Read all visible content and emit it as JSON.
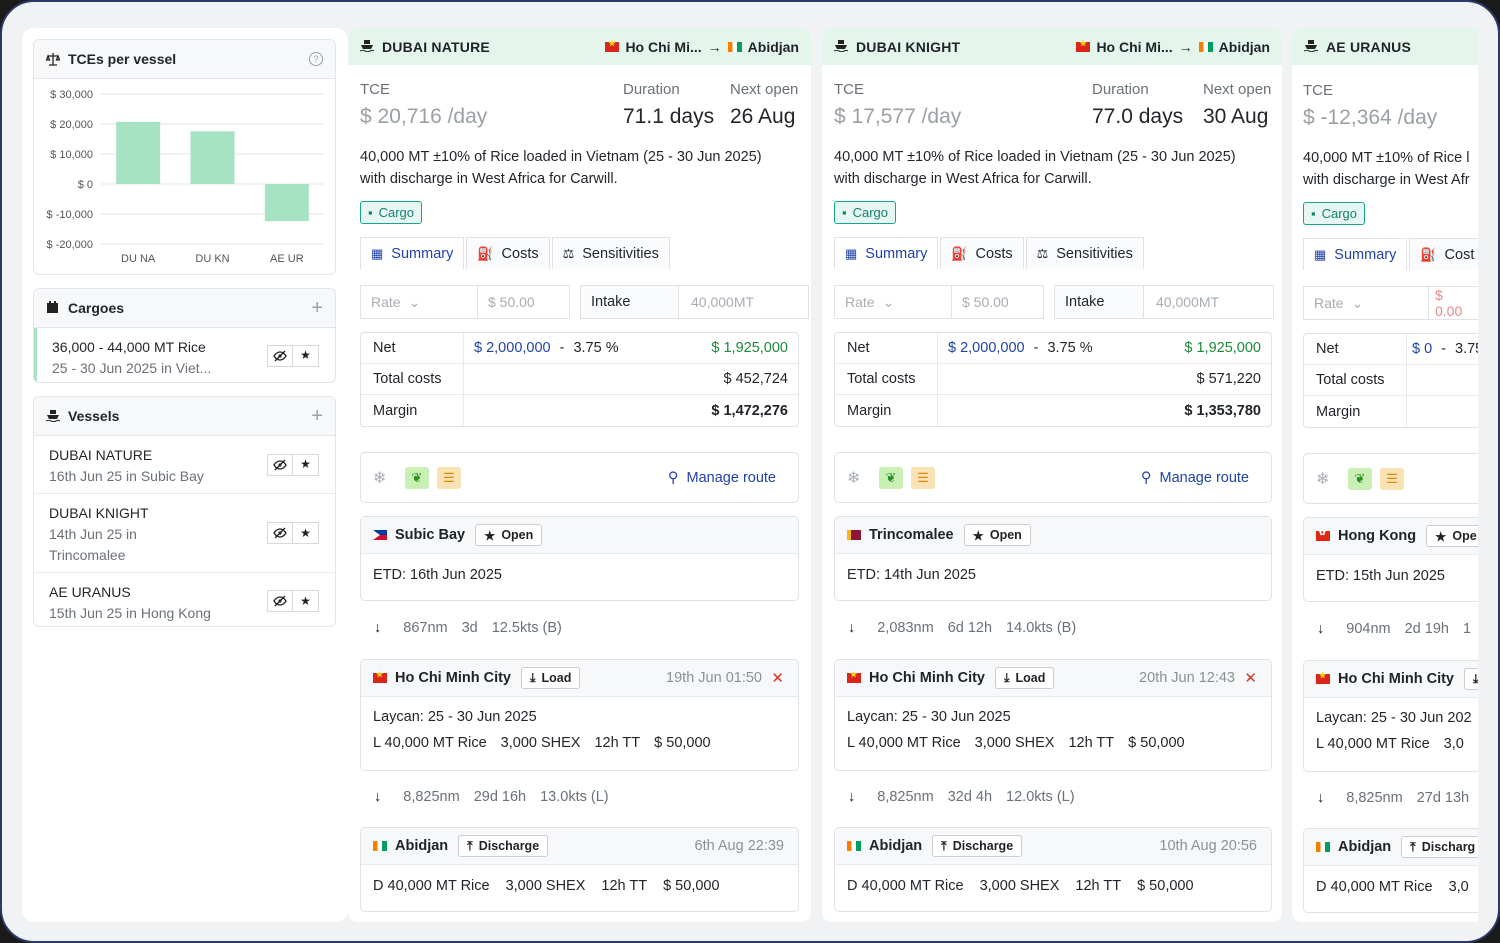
{
  "sidebar": {
    "tce_panel": {
      "title": "TCEs per vessel",
      "help": "?"
    },
    "cargoes": {
      "title": "Cargoes",
      "add": "+",
      "items": [
        {
          "line1": "36,000 - 44,000 MT Rice",
          "line2": "25 - 30 Jun 2025 in Viet..."
        }
      ]
    },
    "vessels": {
      "title": "Vessels",
      "add": "+",
      "items": [
        {
          "name": "DUBAI NATURE",
          "sub": "16th Jun 25 in Subic Bay"
        },
        {
          "name": "DUBAI KNIGHT",
          "sub": "14th Jun 25 in",
          "sub2": "Trincomalee"
        },
        {
          "name": "AE URANUS",
          "sub": "15th Jun 25 in Hong Kong"
        }
      ]
    }
  },
  "chart_data": {
    "type": "bar",
    "title": "TCEs per vessel",
    "categories": [
      "DU NA",
      "DU KN",
      "AE UR"
    ],
    "values": [
      20716,
      17577,
      -12364
    ],
    "yticks": [
      "$ 30,000",
      "$ 20,000",
      "$ 10,000",
      "$ 0",
      "$ -10,000",
      "$ -20,000"
    ],
    "ylim": [
      -20000,
      30000
    ],
    "color": "#a6e3c2",
    "grid": true
  },
  "cards": [
    {
      "vessel": "DUBAI NATURE",
      "from": "Ho Chi Mi...",
      "to": "Abidjan",
      "tce_label": "TCE",
      "tce": "$ 20,716",
      "tce_unit": "/day",
      "duration_label": "Duration",
      "duration": "71.1 days",
      "next_label": "Next open",
      "next": "26 Aug",
      "desc1": "40,000 MT ±10% of Rice loaded in Vietnam (25 - 30 Jun 2025)",
      "desc2": "with discharge in West Africa for Carwill.",
      "tag": "Cargo",
      "tabs": [
        "Summary",
        "Costs",
        "Sensitivities"
      ],
      "rate_label": "Rate",
      "rate_value": "$ 50.00",
      "intake_label": "Intake",
      "intake_value": "40,000MT",
      "net_label": "Net",
      "net_gross": "$ 2,000,000",
      "net_sep": "-",
      "net_pct": "3.75 %",
      "net_value": "$ 1,925,000",
      "costs_label": "Total costs",
      "costs_value": "$ 452,724",
      "margin_label": "Margin",
      "margin_value": "$ 1,472,276",
      "manage": "Manage route",
      "port1": {
        "name": "Subic Bay",
        "pill": "Open",
        "body": "ETD: 16th Jun 2025"
      },
      "leg1": [
        "867nm",
        "3d",
        "12.5kts (B)"
      ],
      "port2": {
        "name": "Ho Chi Minh City",
        "pill": "Load",
        "time": "19th Jun 01:50",
        "line1": "Laycan: 25 - 30 Jun 2025",
        "line2": [
          "L 40,000 MT Rice",
          "3,000 SHEX",
          "12h TT",
          "$ 50,000"
        ]
      },
      "leg2": [
        "8,825nm",
        "29d 16h",
        "13.0kts (L)"
      ],
      "port3": {
        "name": "Abidjan",
        "pill": "Discharge",
        "time": "6th Aug 22:39",
        "line2": [
          "D 40,000 MT Rice",
          "3,000 SHEX",
          "12h TT",
          "$ 50,000"
        ]
      }
    },
    {
      "vessel": "DUBAI KNIGHT",
      "from": "Ho Chi Mi...",
      "to": "Abidjan",
      "tce_label": "TCE",
      "tce": "$ 17,577",
      "tce_unit": "/day",
      "duration_label": "Duration",
      "duration": "77.0 days",
      "next_label": "Next open",
      "next": "30 Aug",
      "desc1": "40,000 MT ±10% of Rice loaded in Vietnam (25 - 30 Jun 2025)",
      "desc2": "with discharge in West Africa for Carwill.",
      "tag": "Cargo",
      "tabs": [
        "Summary",
        "Costs",
        "Sensitivities"
      ],
      "rate_label": "Rate",
      "rate_value": "$ 50.00",
      "intake_label": "Intake",
      "intake_value": "40,000MT",
      "net_label": "Net",
      "net_gross": "$ 2,000,000",
      "net_sep": "-",
      "net_pct": "3.75 %",
      "net_value": "$ 1,925,000",
      "costs_label": "Total costs",
      "costs_value": "$ 571,220",
      "margin_label": "Margin",
      "margin_value": "$ 1,353,780",
      "manage": "Manage route",
      "port1": {
        "name": "Trincomalee",
        "pill": "Open",
        "body": "ETD: 14th Jun 2025"
      },
      "leg1": [
        "2,083nm",
        "6d 12h",
        "14.0kts (B)"
      ],
      "port2": {
        "name": "Ho Chi Minh City",
        "pill": "Load",
        "time": "20th Jun 12:43",
        "line1": "Laycan: 25 - 30 Jun 2025",
        "line2": [
          "L 40,000 MT Rice",
          "3,000 SHEX",
          "12h TT",
          "$ 50,000"
        ]
      },
      "leg2": [
        "8,825nm",
        "32d 4h",
        "12.0kts (L)"
      ],
      "port3": {
        "name": "Abidjan",
        "pill": "Discharge",
        "time": "10th Aug 20:56",
        "line2": [
          "D 40,000 MT Rice",
          "3,000 SHEX",
          "12h TT",
          "$ 50,000"
        ]
      }
    },
    {
      "vessel": "AE URANUS",
      "tce_label": "TCE",
      "tce": "$ -12,364",
      "tce_unit": "/day",
      "desc1": "40,000 MT ±10% of Rice l",
      "desc2": "with discharge in West Afr",
      "tag": "Cargo",
      "tabs": [
        "Summary",
        "Cost"
      ],
      "rate_label": "Rate",
      "rate_value": "$ 0.00",
      "net_label": "Net",
      "net_gross": "$ 0",
      "net_sep": "-",
      "net_pct": "3.75",
      "costs_label": "Total costs",
      "margin_label": "Margin",
      "port1": {
        "name": "Hong Kong",
        "pill": "Ope",
        "body": "ETD: 15th Jun 2025"
      },
      "leg1": [
        "904nm",
        "2d 19h",
        "1"
      ],
      "port2": {
        "name": "Ho Chi Minh City",
        "pill": "",
        "line1": "Laycan: 25 - 30 Jun 202",
        "line2": [
          "L 40,000 MT Rice",
          "3,0"
        ]
      },
      "leg2": [
        "8,825nm",
        "27d 13h"
      ],
      "port3": {
        "name": "Abidjan",
        "pill": "Discharg",
        "line2": [
          "D 40,000 MT Rice",
          "3,0"
        ]
      }
    }
  ]
}
